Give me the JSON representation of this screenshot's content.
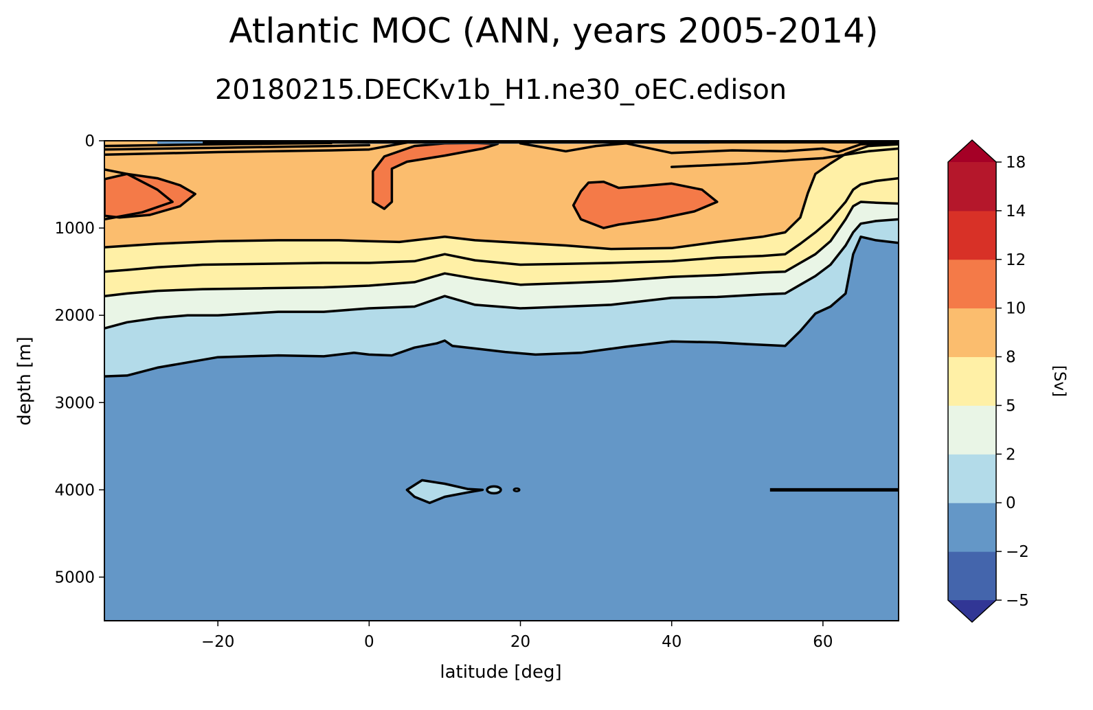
{
  "figure": {
    "title": "Atlantic MOC (ANN, years 2005-2014)",
    "subtitle": "20180215.DECKv1b_H1.ne30_oEC.edison"
  },
  "chart_data": {
    "type": "heatmap",
    "subtype": "filled-contour",
    "title": "Atlantic MOC (ANN, years 2005-2014)",
    "subtitle": "20180215.DECKv1b_H1.ne30_oEC.edison",
    "xlabel": "latitude [deg]",
    "ylabel": "depth [m]",
    "xlim": [
      -35,
      70
    ],
    "ylim": [
      5500,
      0
    ],
    "y_inverted": true,
    "xticks": [
      -20,
      0,
      20,
      40,
      60
    ],
    "yticks": [
      0,
      1000,
      2000,
      3000,
      4000,
      5000
    ],
    "colorbar": {
      "label": "[Sv]",
      "levels": [
        -5,
        -2,
        0,
        2,
        5,
        8,
        10,
        12,
        14,
        18
      ],
      "ticklabels": [
        "−5",
        "−2",
        "0",
        "2",
        "5",
        "8",
        "10",
        "12",
        "14",
        "18"
      ],
      "colors": [
        "#4465ac",
        "#6497c7",
        "#b3dbe9",
        "#e9f5e6",
        "#fff0a6",
        "#fbbd6e",
        "#f47a48",
        "#d83127",
        "#b5172b"
      ],
      "extend": "both",
      "under_color": "#313695",
      "over_color": "#a50026"
    },
    "contour_levels": [
      -2,
      0,
      2,
      4,
      6,
      8,
      10,
      12,
      14,
      16
    ],
    "contour_lines_approx": [
      {
        "level": 0,
        "depth_at_lat": {
          "-35": 2700,
          "-20": 2480,
          "0": 2450,
          "20": 2450,
          "40": 2300,
          "55": 2350,
          "60": 1900,
          "65": 1100
        }
      },
      {
        "level": 2,
        "depth_at_lat": {
          "-35": 2150,
          "-20": 2000,
          "0": 1920,
          "20": 1920,
          "40": 1800,
          "55": 1750,
          "60": 1550,
          "65": 950
        }
      },
      {
        "level": 4,
        "depth_at_lat": {
          "-35": 1780,
          "-20": 1700,
          "0": 1660,
          "20": 1650,
          "40": 1560,
          "55": 1500,
          "60": 1300,
          "65": 700
        }
      },
      {
        "level": 6,
        "depth_at_lat": {
          "-35": 1500,
          "-20": 1420,
          "0": 1400,
          "20": 1420,
          "40": 1380,
          "55": 1300,
          "60": 1050,
          "65": 500
        }
      },
      {
        "level": 8,
        "depth_at_lat": {
          "-35": 1220,
          "-20": 1150,
          "0": 1150,
          "20": 1170,
          "40": 1230,
          "55": 1050,
          "58": 600
        }
      }
    ],
    "maxima_regions_approx": [
      {
        "value_range": "10-12",
        "lat_range": [
          -35,
          -23
        ],
        "depth_range": [
          400,
          900
        ]
      },
      {
        "value_range": "10-12",
        "lat_range": [
          0,
          17
        ],
        "depth_range": [
          0,
          800
        ]
      },
      {
        "value_range": "10-12",
        "lat_range": [
          28,
          46
        ],
        "depth_range": [
          500,
          1050
        ]
      }
    ],
    "small_closed_contour": {
      "level": 0,
      "lat_range": [
        5,
        20
      ],
      "depth": 4000
    },
    "flat_contour_segment": {
      "lat_range": [
        53,
        70
      ],
      "depth": 4000
    },
    "grid": false,
    "legend": "none"
  }
}
